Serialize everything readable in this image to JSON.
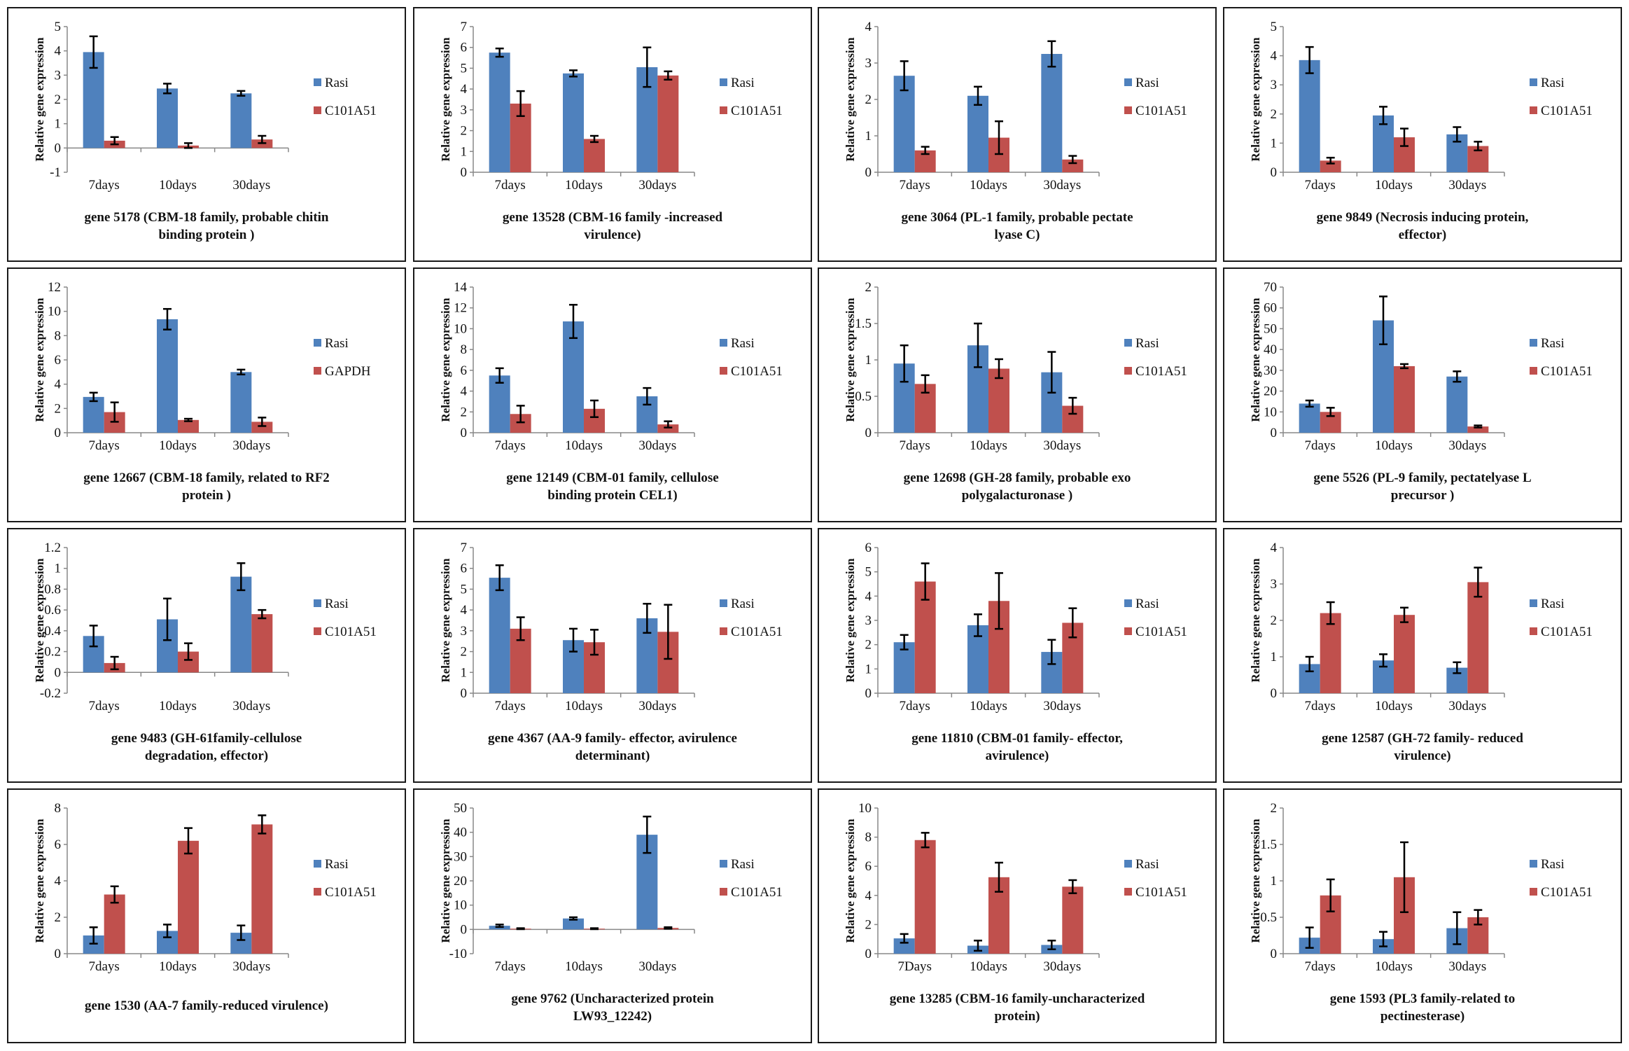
{
  "colors": {
    "series1": "#4f81bd",
    "series2": "#c0504d",
    "error": "#000000",
    "axis": "#888888"
  },
  "chart_data": [
    {
      "type": "bar",
      "title_lines": [
        "gene 5178 (CBM-18 family, probable chitin",
        "binding protein )"
      ],
      "ylabel": "Relative gene expression",
      "categories": [
        "7days",
        "10days",
        "30days"
      ],
      "ylim": [
        -1,
        5
      ],
      "yticks": [
        "-1",
        "0",
        "1",
        "2",
        "3",
        "4",
        "5"
      ],
      "ytick_values": [
        -1,
        0,
        1,
        2,
        3,
        4,
        5
      ],
      "series": [
        {
          "name": "Rasi",
          "values": [
            3.95,
            2.45,
            2.25
          ],
          "errors": [
            0.65,
            0.2,
            0.1
          ]
        },
        {
          "name": "C101A51",
          "values": [
            0.3,
            0.1,
            0.35
          ],
          "errors": [
            0.15,
            0.1,
            0.15
          ]
        }
      ]
    },
    {
      "type": "bar",
      "title_lines": [
        "gene 13528 (CBM-16 family -increased",
        "virulence)"
      ],
      "ylabel": "Relative gene expression",
      "categories": [
        "7days",
        "10days",
        "30days"
      ],
      "ylim": [
        0,
        7
      ],
      "yticks": [
        "0",
        "1",
        "2",
        "3",
        "4",
        "5",
        "6",
        "7"
      ],
      "ytick_values": [
        0,
        1,
        2,
        3,
        4,
        5,
        6,
        7
      ],
      "series": [
        {
          "name": "Rasi",
          "values": [
            5.75,
            4.75,
            5.05
          ],
          "errors": [
            0.2,
            0.15,
            0.95
          ]
        },
        {
          "name": "C101A51",
          "values": [
            3.3,
            1.6,
            4.65
          ],
          "errors": [
            0.6,
            0.15,
            0.2
          ]
        }
      ]
    },
    {
      "type": "bar",
      "title_lines": [
        "gene 3064 (PL-1 family, probable pectate",
        "lyase C)"
      ],
      "ylabel": "Relative gene expression",
      "categories": [
        "7days",
        "10days",
        "30days"
      ],
      "ylim": [
        0,
        4
      ],
      "yticks": [
        "0",
        "1",
        "2",
        "3",
        "4"
      ],
      "ytick_values": [
        0,
        1,
        2,
        3,
        4
      ],
      "series": [
        {
          "name": "Rasi",
          "values": [
            2.65,
            2.1,
            3.25
          ],
          "errors": [
            0.4,
            0.25,
            0.35
          ]
        },
        {
          "name": "C101A51",
          "values": [
            0.6,
            0.95,
            0.35
          ],
          "errors": [
            0.1,
            0.45,
            0.1
          ]
        }
      ]
    },
    {
      "type": "bar",
      "title_lines": [
        "gene 9849 (Necrosis inducing protein,",
        "effector)"
      ],
      "ylabel": "Relative gene expression",
      "categories": [
        "7days",
        "10days",
        "30days"
      ],
      "ylim": [
        0,
        5
      ],
      "yticks": [
        "0",
        "1",
        "2",
        "3",
        "4",
        "5"
      ],
      "ytick_values": [
        0,
        1,
        2,
        3,
        4,
        5
      ],
      "series": [
        {
          "name": "Rasi",
          "values": [
            3.85,
            1.95,
            1.3
          ],
          "errors": [
            0.45,
            0.3,
            0.25
          ]
        },
        {
          "name": "C101A51",
          "values": [
            0.4,
            1.2,
            0.9
          ],
          "errors": [
            0.1,
            0.3,
            0.15
          ]
        }
      ]
    },
    {
      "type": "bar",
      "title_lines": [
        "gene 12667 (CBM-18 family, related to RF2",
        "protein )"
      ],
      "ylabel": "Relative gene expression",
      "categories": [
        "7days",
        "10days",
        "30days"
      ],
      "ylim": [
        0,
        12
      ],
      "yticks": [
        "0",
        "2",
        "4",
        "6",
        "8",
        "10",
        "12"
      ],
      "ytick_values": [
        0,
        2,
        4,
        6,
        8,
        10,
        12
      ],
      "series": [
        {
          "name": "Rasi",
          "values": [
            2.95,
            9.35,
            5.0
          ],
          "errors": [
            0.35,
            0.85,
            0.2
          ]
        },
        {
          "name": "GAPDH",
          "values": [
            1.7,
            1.05,
            0.9
          ],
          "errors": [
            0.8,
            0.1,
            0.35
          ]
        }
      ]
    },
    {
      "type": "bar",
      "title_lines": [
        "gene 12149 (CBM-01 family,  cellulose",
        "binding protein CEL1)"
      ],
      "ylabel": "Relative gene expression",
      "categories": [
        "7days",
        "10days",
        "30days"
      ],
      "ylim": [
        0,
        14
      ],
      "yticks": [
        "0",
        "2",
        "4",
        "6",
        "8",
        "10",
        "12",
        "14"
      ],
      "ytick_values": [
        0,
        2,
        4,
        6,
        8,
        10,
        12,
        14
      ],
      "series": [
        {
          "name": "Rasi",
          "values": [
            5.5,
            10.7,
            3.5
          ],
          "errors": [
            0.7,
            1.6,
            0.8
          ]
        },
        {
          "name": "C101A51",
          "values": [
            1.8,
            2.3,
            0.8
          ],
          "errors": [
            0.8,
            0.8,
            0.3
          ]
        }
      ]
    },
    {
      "type": "bar",
      "title_lines": [
        "gene 12698 (GH-28 family, probable exo",
        "polygalacturonase )"
      ],
      "ylabel": "Relative gene expression",
      "categories": [
        "7days",
        "10days",
        "30days"
      ],
      "ylim": [
        0,
        2
      ],
      "yticks": [
        "0",
        "0.5",
        "1",
        "1.5",
        "2"
      ],
      "ytick_values": [
        0,
        0.5,
        1,
        1.5,
        2
      ],
      "series": [
        {
          "name": "Rasi",
          "values": [
            0.95,
            1.2,
            0.83
          ],
          "errors": [
            0.25,
            0.3,
            0.28
          ]
        },
        {
          "name": "C101A51",
          "values": [
            0.67,
            0.88,
            0.37
          ],
          "errors": [
            0.12,
            0.13,
            0.11
          ]
        }
      ]
    },
    {
      "type": "bar",
      "title_lines": [
        "gene 5526 (PL-9 family, pectatelyase L",
        "precursor )"
      ],
      "ylabel": "Relative gene expression",
      "categories": [
        "7days",
        "10days",
        "30days"
      ],
      "ylim": [
        0,
        70
      ],
      "yticks": [
        "0",
        "10",
        "20",
        "30",
        "40",
        "50",
        "60",
        "70"
      ],
      "ytick_values": [
        0,
        10,
        20,
        30,
        40,
        50,
        60,
        70
      ],
      "series": [
        {
          "name": "Rasi",
          "values": [
            14,
            54,
            27
          ],
          "errors": [
            1.5,
            11.5,
            2.5
          ]
        },
        {
          "name": "C101A51",
          "values": [
            10,
            32,
            3
          ],
          "errors": [
            2,
            1,
            0.5
          ]
        }
      ]
    },
    {
      "type": "bar",
      "title_lines": [
        "gene 9483 (GH-61family-cellulose",
        "degradation, effector)"
      ],
      "ylabel": "Relative gene expression",
      "categories": [
        "7days",
        "10days",
        "30days"
      ],
      "ylim": [
        -0.2,
        1.2
      ],
      "yticks": [
        "-0.2",
        "0",
        "0.2",
        "0.4",
        "0.6",
        "0.8",
        "1",
        "1.2"
      ],
      "ytick_values": [
        -0.2,
        0,
        0.2,
        0.4,
        0.6,
        0.8,
        1,
        1.2
      ],
      "series": [
        {
          "name": "Rasi",
          "values": [
            0.35,
            0.51,
            0.92
          ],
          "errors": [
            0.1,
            0.2,
            0.13
          ]
        },
        {
          "name": "C101A51",
          "values": [
            0.09,
            0.2,
            0.56
          ],
          "errors": [
            0.06,
            0.08,
            0.04
          ]
        }
      ]
    },
    {
      "type": "bar",
      "title_lines": [
        "gene 4367 (AA-9 family- effector, avirulence",
        "determinant)"
      ],
      "ylabel": "Relative gene expression",
      "categories": [
        "7days",
        "10days",
        "30days"
      ],
      "ylim": [
        0,
        7
      ],
      "yticks": [
        "0",
        "1",
        "2",
        "3",
        "4",
        "5",
        "6",
        "7"
      ],
      "ytick_values": [
        0,
        1,
        2,
        3,
        4,
        5,
        6,
        7
      ],
      "series": [
        {
          "name": "Rasi",
          "values": [
            5.55,
            2.55,
            3.6
          ],
          "errors": [
            0.6,
            0.55,
            0.7
          ]
        },
        {
          "name": "C101A51",
          "values": [
            3.1,
            2.45,
            2.95
          ],
          "errors": [
            0.55,
            0.6,
            1.3
          ]
        }
      ]
    },
    {
      "type": "bar",
      "title_lines": [
        "gene 11810 (CBM-01 family- effector,",
        "avirulence)"
      ],
      "ylabel": "Relative gene expression",
      "categories": [
        "7days",
        "10days",
        "30days"
      ],
      "ylim": [
        0,
        6
      ],
      "yticks": [
        "0",
        "1",
        "2",
        "3",
        "4",
        "5",
        "6"
      ],
      "ytick_values": [
        0,
        1,
        2,
        3,
        4,
        5,
        6
      ],
      "series": [
        {
          "name": "Rasi",
          "values": [
            2.1,
            2.8,
            1.7
          ],
          "errors": [
            0.3,
            0.45,
            0.5
          ]
        },
        {
          "name": "C101A51",
          "values": [
            4.6,
            3.8,
            2.9
          ],
          "errors": [
            0.75,
            1.15,
            0.6
          ]
        }
      ]
    },
    {
      "type": "bar",
      "title_lines": [
        "gene 12587 (GH-72 family- reduced",
        "virulence)"
      ],
      "ylabel": "Relative gene expression",
      "categories": [
        "7days",
        "10days",
        "30days"
      ],
      "ylim": [
        0,
        4
      ],
      "yticks": [
        "0",
        "1",
        "2",
        "3",
        "4"
      ],
      "ytick_values": [
        0,
        1,
        2,
        3,
        4
      ],
      "series": [
        {
          "name": "Rasi",
          "values": [
            0.8,
            0.9,
            0.7
          ],
          "errors": [
            0.2,
            0.17,
            0.15
          ]
        },
        {
          "name": "C101A51",
          "values": [
            2.2,
            2.15,
            3.05
          ],
          "errors": [
            0.3,
            0.2,
            0.4
          ]
        }
      ]
    },
    {
      "type": "bar",
      "title_lines": [
        "gene 1530 (AA-7 family-reduced virulence)"
      ],
      "ylabel": "Relative gene expression",
      "categories": [
        "7days",
        "10days",
        "30days"
      ],
      "ylim": [
        0,
        8
      ],
      "yticks": [
        "0",
        "2",
        "4",
        "6",
        "8"
      ],
      "ytick_values": [
        0,
        2,
        4,
        6,
        8
      ],
      "series": [
        {
          "name": "Rasi",
          "values": [
            1.0,
            1.25,
            1.15
          ],
          "errors": [
            0.45,
            0.35,
            0.4
          ]
        },
        {
          "name": "C101A51",
          "values": [
            3.25,
            6.2,
            7.1
          ],
          "errors": [
            0.45,
            0.7,
            0.5
          ]
        }
      ]
    },
    {
      "type": "bar",
      "title_lines": [
        "gene 9762 (Uncharacterized protein",
        "LW93_12242)"
      ],
      "ylabel": "Relative gene expression",
      "categories": [
        "7days",
        "10days",
        "30days"
      ],
      "ylim": [
        -10,
        50
      ],
      "yticks": [
        "-10",
        "0",
        "10",
        "20",
        "30",
        "40",
        "50"
      ],
      "ytick_values": [
        -10,
        0,
        10,
        20,
        30,
        40,
        50
      ],
      "series": [
        {
          "name": "Rasi",
          "values": [
            1.5,
            4.5,
            39
          ],
          "errors": [
            0.5,
            0.5,
            7.5
          ]
        },
        {
          "name": "C101A51",
          "values": [
            0.3,
            0.3,
            0.6
          ],
          "errors": [
            0.2,
            0.2,
            0.3
          ]
        }
      ]
    },
    {
      "type": "bar",
      "title_lines": [
        "gene 13285 (CBM-16 family-uncharacterized",
        "protein)"
      ],
      "ylabel": "Relative gene expression",
      "categories": [
        "7Days",
        "10days",
        "30days"
      ],
      "ylim": [
        0,
        10
      ],
      "yticks": [
        "0",
        "2",
        "4",
        "6",
        "8",
        "10"
      ],
      "ytick_values": [
        0,
        2,
        4,
        6,
        8,
        10
      ],
      "series": [
        {
          "name": "Rasi",
          "values": [
            1.05,
            0.55,
            0.6
          ],
          "errors": [
            0.3,
            0.35,
            0.3
          ]
        },
        {
          "name": "C101A51",
          "values": [
            7.8,
            5.25,
            4.6
          ],
          "errors": [
            0.5,
            1.0,
            0.45
          ]
        }
      ]
    },
    {
      "type": "bar",
      "title_lines": [
        "gene 1593 (PL3 family-related to",
        "pectinesterase)"
      ],
      "ylabel": "Relative gene expression",
      "categories": [
        "7days",
        "10days",
        "30days"
      ],
      "ylim": [
        0,
        2
      ],
      "yticks": [
        "0",
        "0.5",
        "1",
        "1.5",
        "2"
      ],
      "ytick_values": [
        0,
        0.5,
        1,
        1.5,
        2
      ],
      "series": [
        {
          "name": "Rasi",
          "values": [
            0.22,
            0.2,
            0.35
          ],
          "errors": [
            0.14,
            0.1,
            0.22
          ]
        },
        {
          "name": "C101A51",
          "values": [
            0.8,
            1.05,
            0.5
          ],
          "errors": [
            0.22,
            0.48,
            0.1
          ]
        }
      ]
    }
  ]
}
